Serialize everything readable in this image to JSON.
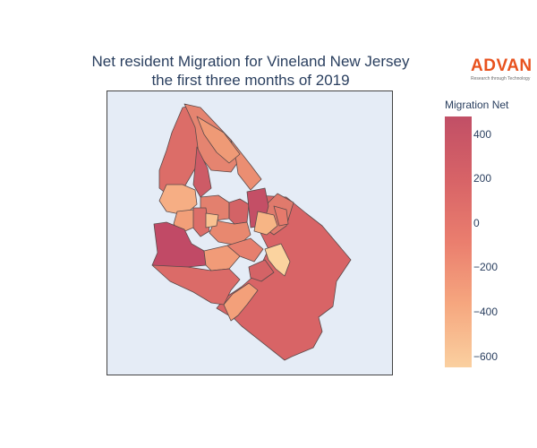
{
  "title": {
    "line1": "Net resident Migration for Vineland New Jersey",
    "line2": "the first three months of 2019"
  },
  "logo": {
    "word": "ADVAN",
    "tagline": "Research through Technology"
  },
  "colorbar": {
    "title": "Migration Net",
    "range": [
      -650,
      480
    ],
    "ticks": [
      "400",
      "200",
      "0",
      "−200",
      "−400",
      "−600"
    ],
    "tick_values": [
      400,
      200,
      0,
      -200,
      -400,
      -600
    ],
    "colors": [
      "#fad0a0",
      "#f6a77f",
      "#ea7e6e",
      "#d76367",
      "#c14f66"
    ]
  },
  "map": {
    "background": "#e5ecf6",
    "border_color": "#555555"
  }
}
